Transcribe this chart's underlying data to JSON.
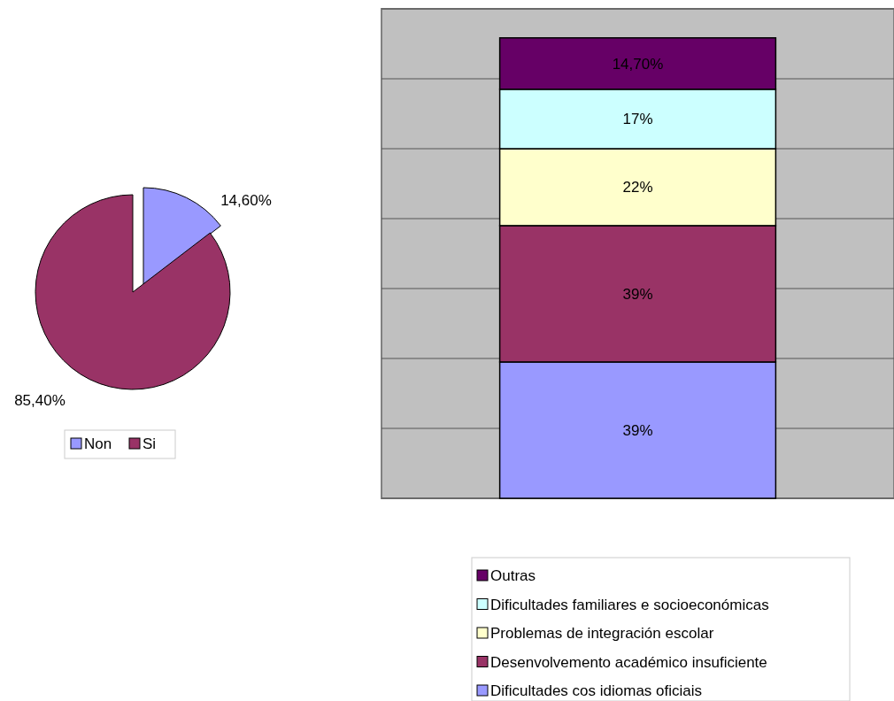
{
  "chart_data": [
    {
      "type": "pie",
      "categories": [
        "Non",
        "Si"
      ],
      "values": [
        14.6,
        85.4
      ],
      "colors": [
        "#9999ff",
        "#993366"
      ],
      "value_labels": [
        "14,60%",
        "85,40%"
      ],
      "legend": "bottom"
    },
    {
      "type": "bar",
      "stacked": true,
      "categories": [
        null
      ],
      "ylim": [
        0,
        140
      ],
      "yticks": [
        {
          "value": 0,
          "label": null
        },
        {
          "value": 20,
          "label": null
        },
        {
          "value": 40,
          "label": null
        },
        {
          "value": 60,
          "label": null
        },
        {
          "value": 80,
          "label": null
        },
        {
          "value": 100,
          "label": null
        },
        {
          "value": 120,
          "label": null
        },
        {
          "value": 140,
          "label": null
        }
      ],
      "grid": "y",
      "legend": "bottom right",
      "series": [
        {
          "name": "Dificultades cos idiomas oficiais",
          "color": "#9999ff",
          "values": [
            39
          ],
          "value_labels": [
            "39%"
          ]
        },
        {
          "name": "Desenvolvemento académico insuficiente",
          "color": "#993366",
          "values": [
            39
          ],
          "value_labels": [
            "39%"
          ]
        },
        {
          "name": "Problemas de integración escolar",
          "color": "#ffffcc",
          "values": [
            22
          ],
          "value_labels": [
            "22%"
          ]
        },
        {
          "name": "Dificultades familiares e socioeconómicas",
          "color": "#ccffff",
          "values": [
            17
          ],
          "value_labels": [
            "17%"
          ]
        },
        {
          "name": "Outras",
          "color": "#660066",
          "values": [
            14.7
          ],
          "value_labels": [
            "14,70%"
          ]
        }
      ]
    }
  ]
}
